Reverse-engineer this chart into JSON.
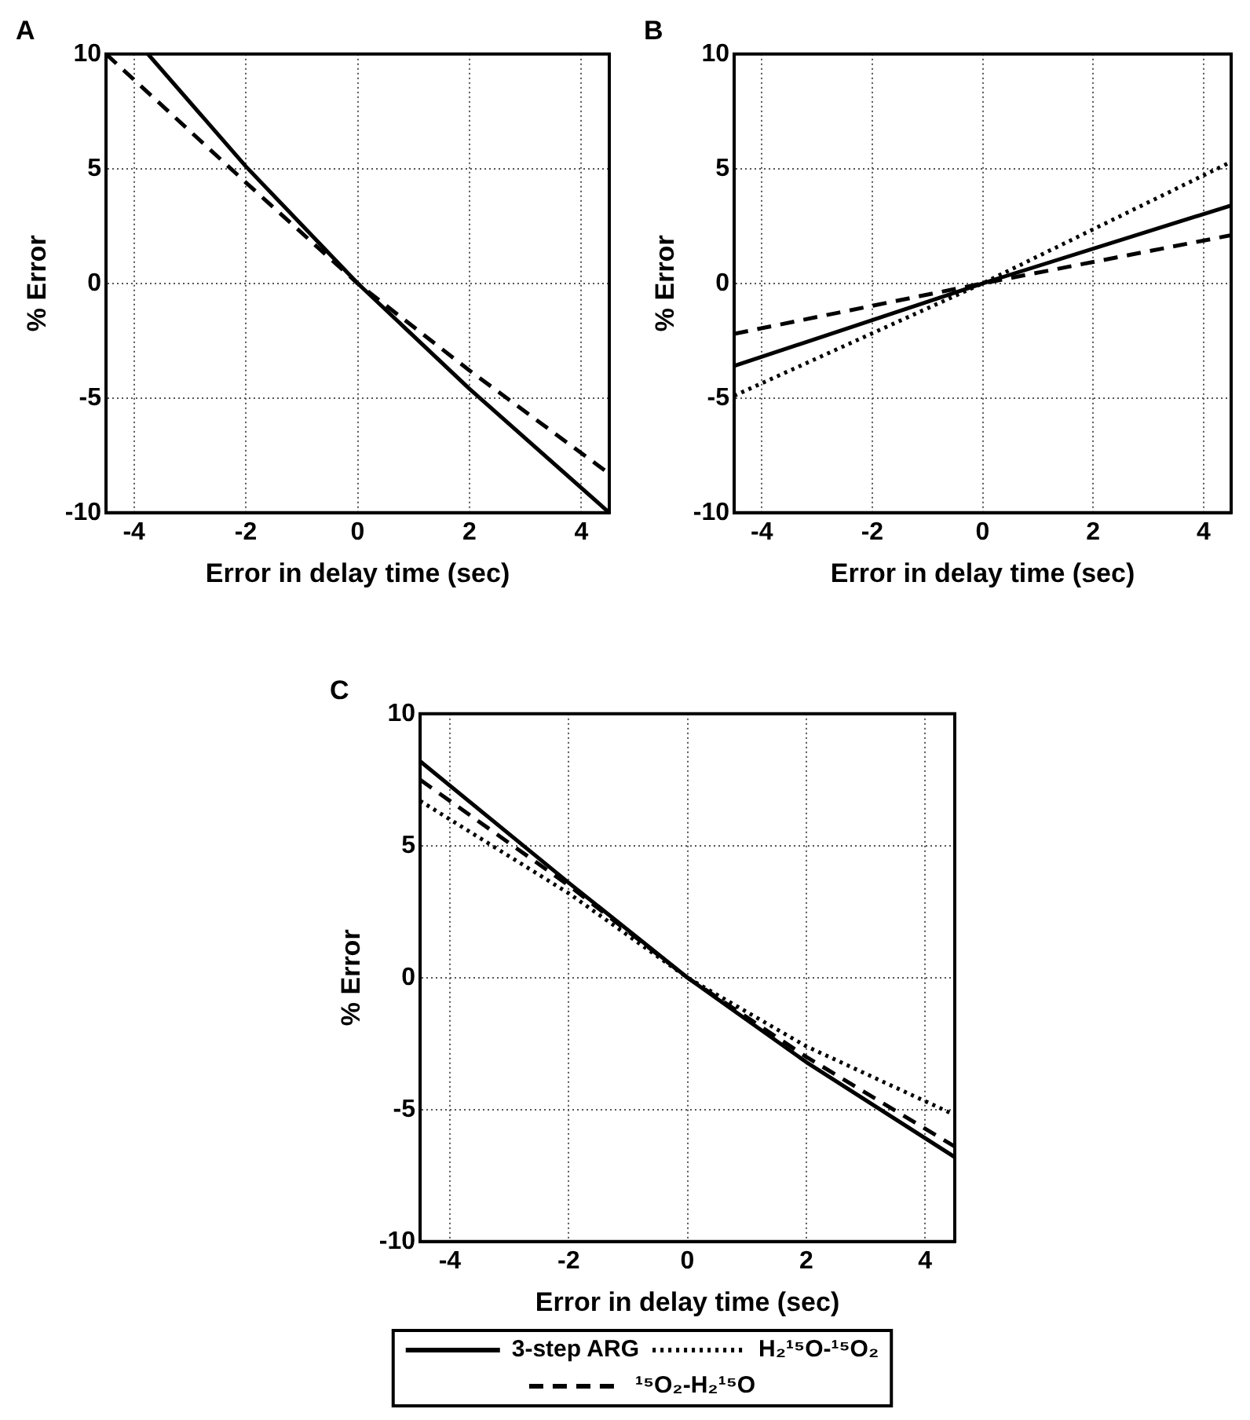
{
  "chart_data": [
    {
      "type": "line",
      "title": "A",
      "xlabel": "Error in delay time (sec)",
      "ylabel": "% Error",
      "xlim": [
        -4.5,
        4.5
      ],
      "ylim": [
        -10,
        10
      ],
      "xticks": [
        -4,
        -2,
        0,
        2,
        4
      ],
      "yticks": [
        -10,
        -5,
        0,
        5,
        10
      ],
      "grid": true,
      "marker": "none",
      "series": [
        {
          "color": "#000000",
          "line_style": "solid",
          "x": [
            -3.75,
            -2,
            0,
            2,
            4.5
          ],
          "values": [
            10,
            5.1,
            0,
            -4.6,
            -10
          ]
        },
        {
          "color": "#000000",
          "line_style": "dashed",
          "x": [
            -4.5,
            -2,
            0,
            2,
            4.5
          ],
          "values": [
            10,
            4.4,
            0,
            -3.8,
            -8.3
          ]
        }
      ]
    },
    {
      "type": "line",
      "title": "B",
      "xlabel": "Error in delay time (sec)",
      "ylabel": "% Error",
      "xlim": [
        -4.5,
        4.5
      ],
      "ylim": [
        -10,
        10
      ],
      "xticks": [
        -4,
        -2,
        0,
        2,
        4
      ],
      "yticks": [
        -10,
        -5,
        0,
        5,
        10
      ],
      "grid": true,
      "marker": "none",
      "series": [
        {
          "color": "#000000",
          "line_style": "solid",
          "x": [
            -4.5,
            0,
            4.5
          ],
          "values": [
            -3.6,
            0,
            3.4
          ]
        },
        {
          "color": "#000000",
          "line_style": "dotted",
          "x": [
            -4.5,
            0,
            4.5
          ],
          "values": [
            -4.9,
            0,
            5.3
          ]
        },
        {
          "color": "#000000",
          "line_style": "dashed",
          "x": [
            -4.5,
            0,
            4.5
          ],
          "values": [
            -2.2,
            0,
            2.1
          ]
        }
      ]
    },
    {
      "type": "line",
      "title": "C",
      "xlabel": "Error in delay time (sec)",
      "ylabel": "% Error",
      "xlim": [
        -4.5,
        4.5
      ],
      "ylim": [
        -10,
        10
      ],
      "xticks": [
        -4,
        -2,
        0,
        2,
        4
      ],
      "yticks": [
        -10,
        -5,
        0,
        5,
        10
      ],
      "grid": true,
      "marker": "none",
      "legend": "bottom",
      "series": [
        {
          "name": "3-step ARG",
          "color": "#000000",
          "line_style": "solid",
          "x": [
            -4.5,
            -2,
            0,
            2,
            4.5
          ],
          "values": [
            8.2,
            3.6,
            0,
            -3.2,
            -6.8
          ]
        },
        {
          "name": "H₂¹⁵O-¹⁵O₂",
          "color": "#000000",
          "line_style": "dotted",
          "x": [
            -4.5,
            -2,
            0,
            2,
            4.5
          ],
          "values": [
            6.7,
            3.2,
            0,
            -2.6,
            -5.2
          ]
        },
        {
          "name": "¹⁵O₂-H₂¹⁵O",
          "color": "#000000",
          "line_style": "dashed",
          "x": [
            -4.5,
            -2,
            0,
            2,
            4.5
          ],
          "values": [
            7.5,
            3.5,
            0,
            -3.0,
            -6.4
          ]
        }
      ]
    }
  ]
}
